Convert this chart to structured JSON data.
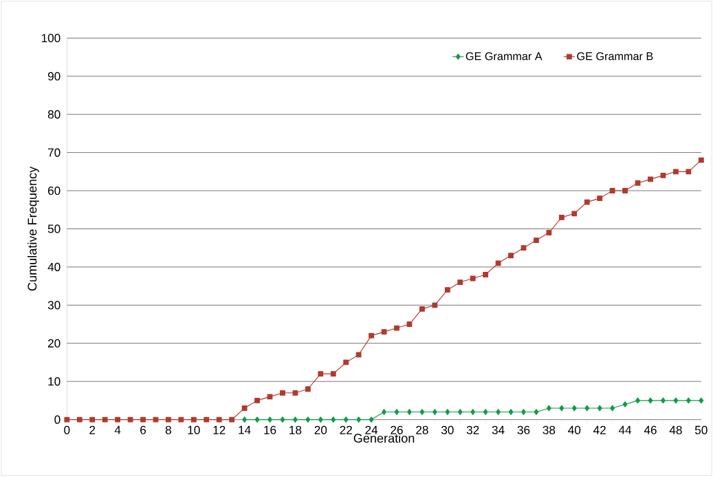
{
  "chart_data": {
    "type": "line",
    "xlabel": "Generation",
    "ylabel": "Cumulative Frequency",
    "x": [
      0,
      1,
      2,
      3,
      4,
      5,
      6,
      7,
      8,
      9,
      10,
      11,
      12,
      13,
      14,
      15,
      16,
      17,
      18,
      19,
      20,
      21,
      22,
      23,
      24,
      25,
      26,
      27,
      28,
      29,
      30,
      31,
      32,
      33,
      34,
      35,
      36,
      37,
      38,
      39,
      40,
      41,
      42,
      43,
      44,
      45,
      46,
      47,
      48,
      49,
      50
    ],
    "series": [
      {
        "name": "GE Grammar  A",
        "color": "#109c46",
        "marker": "diamond",
        "values": [
          null,
          null,
          null,
          null,
          null,
          null,
          null,
          null,
          null,
          null,
          null,
          null,
          null,
          null,
          0,
          0,
          0,
          0,
          0,
          0,
          0,
          0,
          0,
          0,
          0,
          2,
          2,
          2,
          2,
          2,
          2,
          2,
          2,
          2,
          2,
          2,
          2,
          2,
          3,
          3,
          3,
          3,
          3,
          3,
          4,
          5,
          5,
          5,
          5,
          5,
          5
        ]
      },
      {
        "name": "GE Grammar  B",
        "color": "#b03a2e",
        "marker": "square",
        "values": [
          0,
          0,
          0,
          0,
          0,
          0,
          0,
          0,
          0,
          0,
          0,
          0,
          0,
          0,
          3,
          5,
          6,
          7,
          7,
          8,
          12,
          12,
          15,
          17,
          22,
          23,
          24,
          25,
          29,
          30,
          34,
          36,
          37,
          38,
          41,
          43,
          45,
          47,
          49,
          53,
          54,
          57,
          58,
          60,
          60,
          62,
          63,
          64,
          65,
          65,
          68
        ]
      }
    ],
    "xlim": [
      0,
      50
    ],
    "ylim": [
      0,
      100
    ],
    "xticks": [
      0,
      {
        "value": 1,
        "label": null
      },
      2,
      {
        "value": 3,
        "label": null
      },
      4,
      {
        "value": 5,
        "label": null
      },
      6,
      {
        "value": 7,
        "label": null
      },
      8,
      {
        "value": 9,
        "label": null
      },
      10,
      {
        "value": 11,
        "label": null
      },
      12,
      {
        "value": 13,
        "label": null
      },
      14,
      {
        "value": 15,
        "label": null
      },
      16,
      {
        "value": 17,
        "label": null
      },
      18,
      {
        "value": 19,
        "label": null
      },
      20,
      {
        "value": 21,
        "label": null
      },
      22,
      {
        "value": 23,
        "label": null
      },
      24,
      {
        "value": 25,
        "label": null
      },
      26,
      {
        "value": 27,
        "label": null
      },
      28,
      {
        "value": 29,
        "label": null
      },
      30,
      {
        "value": 31,
        "label": null
      },
      32,
      {
        "value": 33,
        "label": null
      },
      34,
      {
        "value": 35,
        "label": null
      },
      36,
      {
        "value": 37,
        "label": null
      },
      38,
      {
        "value": 39,
        "label": null
      },
      40,
      {
        "value": 41,
        "label": null
      },
      42,
      {
        "value": 43,
        "label": null
      },
      44,
      {
        "value": 45,
        "label": null
      },
      46,
      {
        "value": 47,
        "label": null
      },
      48,
      {
        "value": 49,
        "label": null
      },
      50
    ],
    "yticks": [
      0,
      10,
      20,
      30,
      40,
      50,
      60,
      70,
      80,
      90,
      100
    ],
    "grid": "y",
    "legend": "top right",
    "line_style": "solid"
  }
}
